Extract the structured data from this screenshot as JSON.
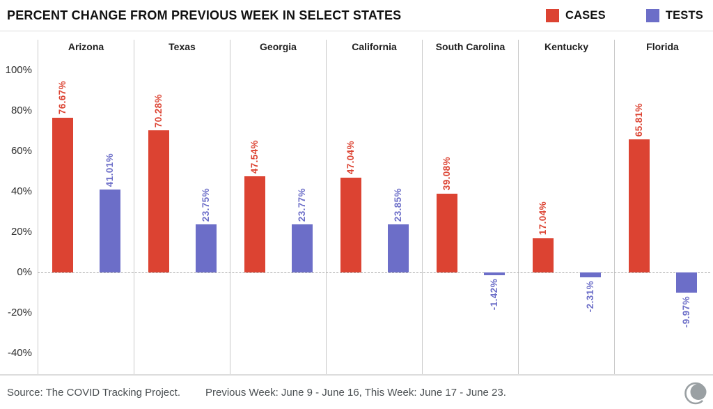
{
  "header": {
    "title": "PERCENT CHANGE FROM PREVIOUS WEEK IN SELECT STATES",
    "legend": [
      {
        "label": "CASES",
        "color": "#dc4332"
      },
      {
        "label": "TESTS",
        "color": "#6c6ec8"
      }
    ]
  },
  "chart_data": {
    "type": "bar",
    "title": "PERCENT CHANGE FROM PREVIOUS WEEK IN SELECT STATES",
    "categories": [
      "Arizona",
      "Texas",
      "Georgia",
      "California",
      "South Carolina",
      "Kentucky",
      "Florida"
    ],
    "series": [
      {
        "name": "CASES",
        "color": "#dc4332",
        "values": [
          76.67,
          70.28,
          47.54,
          47.04,
          39.08,
          17.04,
          65.81
        ]
      },
      {
        "name": "TESTS",
        "color": "#6c6ec8",
        "values": [
          41.01,
          23.75,
          23.77,
          23.85,
          -1.42,
          -2.31,
          -9.97
        ]
      }
    ],
    "value_labels": [
      [
        "76.67%",
        "70.28%",
        "47.54%",
        "47.04%",
        "39.08%",
        "17.04%",
        "65.81%"
      ],
      [
        "41.01%",
        "23.75%",
        "23.77%",
        "23.85%",
        "-1.42%",
        "-2.31%",
        "-9.97%"
      ]
    ],
    "yticks": [
      100,
      80,
      60,
      40,
      20,
      0,
      -20,
      -40
    ],
    "ytick_labels": [
      "100%",
      "80%",
      "60%",
      "40%",
      "20%",
      "0%",
      "-20%",
      "-40%"
    ],
    "ylim": [
      -50,
      118
    ],
    "grid": false,
    "zero_line": "dashed",
    "legend_position": "top-right",
    "bar_label_rotation": "vertical-bottom-to-top"
  },
  "footer": {
    "source": "Source: The COVID Tracking Project.",
    "weeks": "Previous Week: June 9 - June 16, This Week: June 17 - June 23.",
    "logo": "covid-tracking-project-logo",
    "logo_color": "#9aa0a3"
  }
}
